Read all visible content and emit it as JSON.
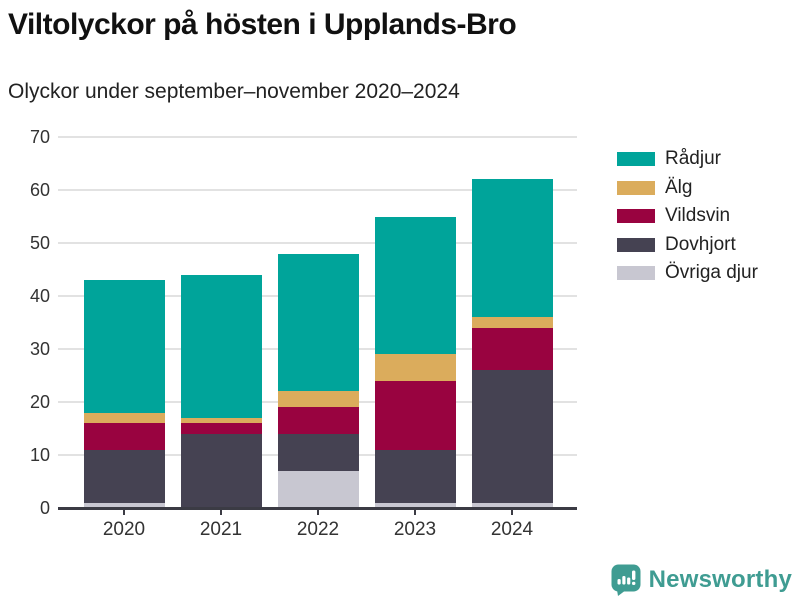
{
  "header": {
    "title": "Viltolyckor på hösten i Upplands-Bro",
    "subtitle": "Olyckor under september–november 2020–2024"
  },
  "chart_data": {
    "type": "bar",
    "stacked": true,
    "title": "Viltolyckor på hösten i Upplands-Bro",
    "subtitle": "Olyckor under september–november 2020–2024",
    "categories": [
      "2020",
      "2021",
      "2022",
      "2023",
      "2024"
    ],
    "series": [
      {
        "name": "Övriga djur",
        "color": "#C8C7D1",
        "values": [
          1,
          0,
          7,
          1,
          1
        ]
      },
      {
        "name": "Dovhjort",
        "color": "#454252",
        "values": [
          10,
          14,
          7,
          10,
          25
        ]
      },
      {
        "name": "Vildsvin",
        "color": "#990340",
        "values": [
          5,
          2,
          5,
          13,
          8
        ]
      },
      {
        "name": "Älg",
        "color": "#DBAC5C",
        "values": [
          2,
          1,
          3,
          5,
          2
        ]
      },
      {
        "name": "Rådjur",
        "color": "#00A49A",
        "values": [
          25,
          27,
          26,
          26,
          26
        ]
      }
    ],
    "totals": [
      43,
      44,
      48,
      55,
      62
    ],
    "xlabel": "",
    "ylabel": "",
    "ylim": [
      0,
      70
    ],
    "yticks": [
      0,
      10,
      20,
      30,
      40,
      50,
      60,
      70
    ],
    "grid": "horizontal",
    "legend_position": "right",
    "legend_order_top_to_bottom": [
      "Rådjur",
      "Älg",
      "Vildsvin",
      "Dovhjort",
      "Övriga djur"
    ]
  },
  "footer": {
    "brand": "Newsworthy",
    "brand_color": "#3F9C92"
  }
}
